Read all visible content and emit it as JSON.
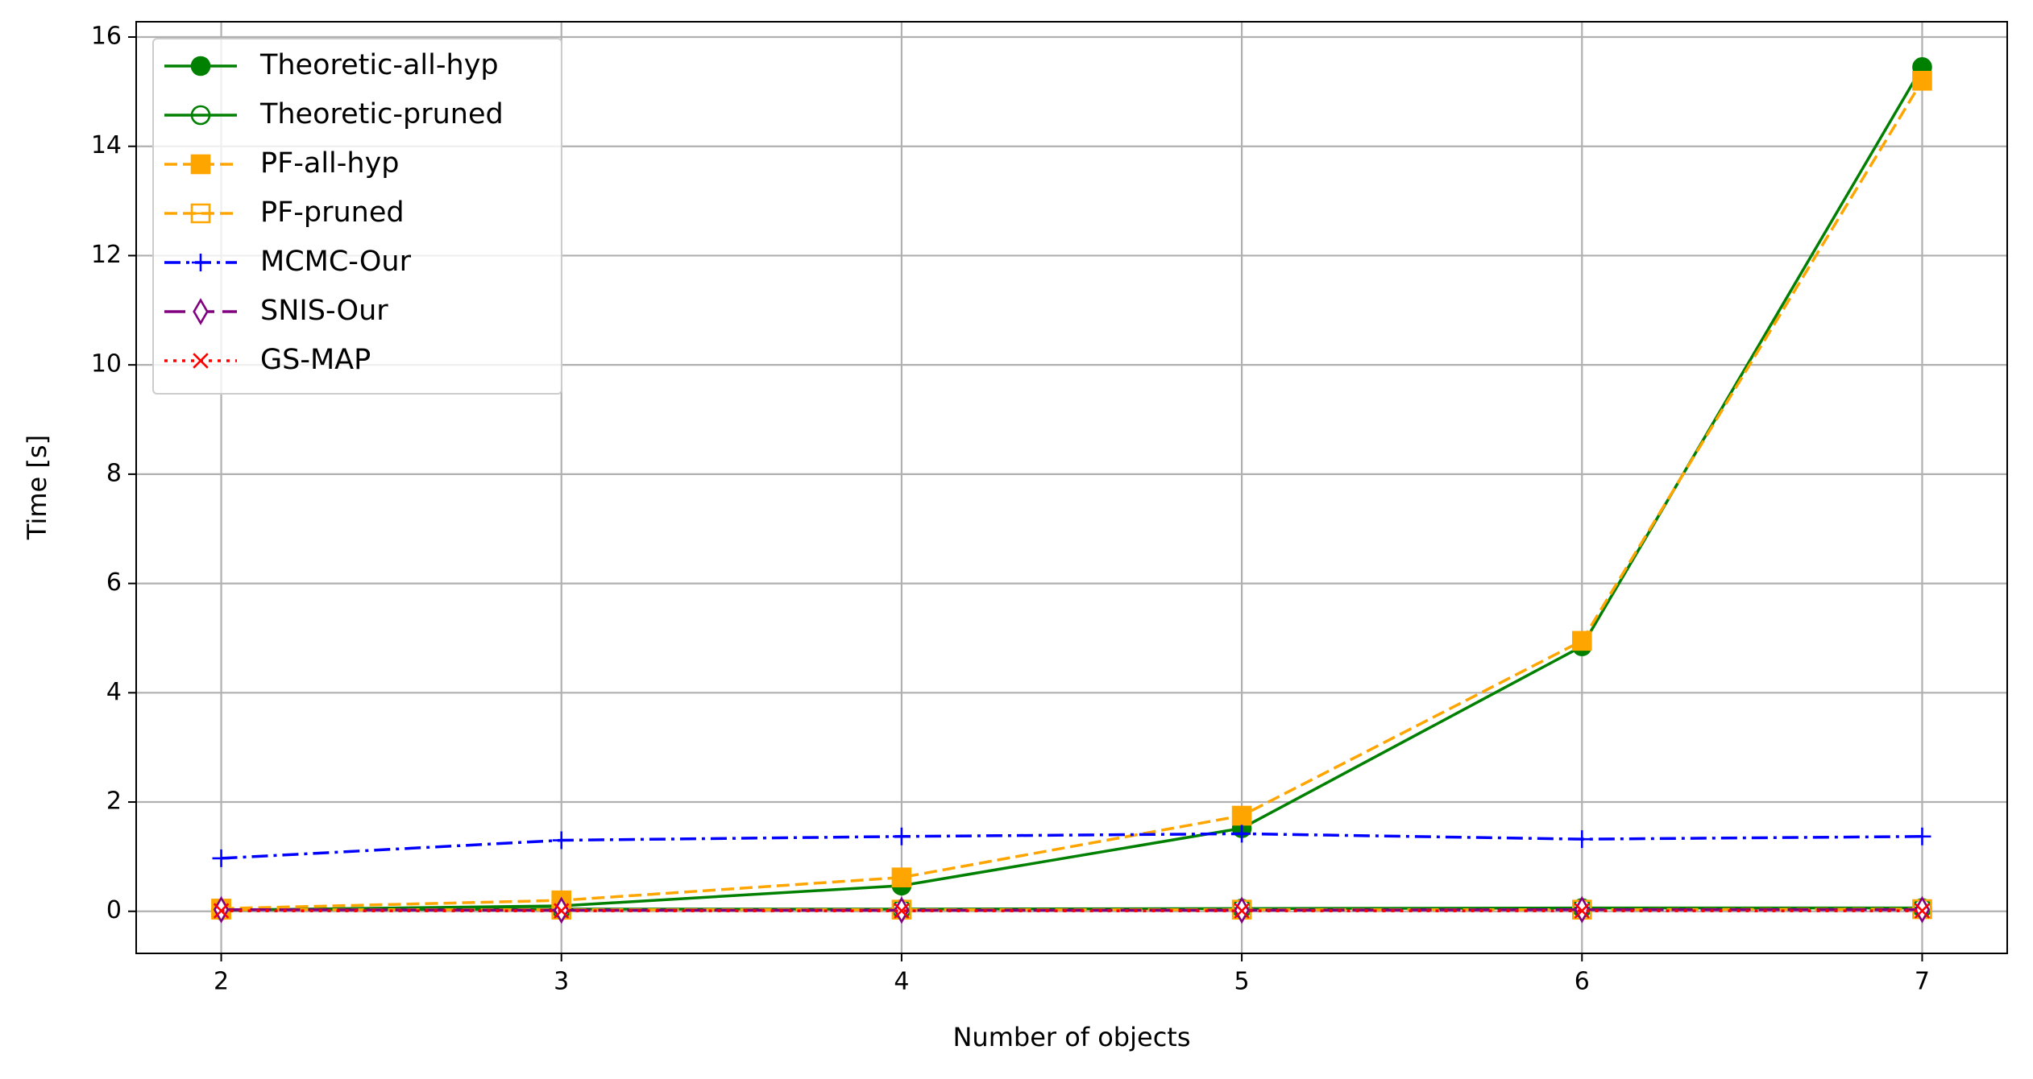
{
  "chart_data": {
    "type": "line",
    "x_label": "Number of objects",
    "y_label": "Time [s]",
    "x": [
      2,
      3,
      4,
      5,
      6,
      7
    ],
    "xlim": [
      1.75,
      7.25
    ],
    "xticks": [
      2,
      3,
      4,
      5,
      6,
      7
    ],
    "ylim": [
      -0.77,
      16.28
    ],
    "yticks": [
      0,
      2,
      4,
      6,
      8,
      10,
      12,
      14,
      16
    ],
    "grid": true,
    "legend": "upper left",
    "series": [
      {
        "name": "Theoretic-all-hyp",
        "color": "#008000",
        "linestyle": "solid",
        "marker": "circle-filled",
        "values": [
          0.02,
          0.1,
          0.47,
          1.52,
          4.85,
          15.45
        ]
      },
      {
        "name": "Theoretic-pruned",
        "color": "#008000",
        "linestyle": "solid",
        "marker": "circle-open",
        "values": [
          0.03,
          0.04,
          0.04,
          0.05,
          0.06,
          0.06
        ]
      },
      {
        "name": "PF-all-hyp",
        "color": "#ffa500",
        "linestyle": "dashed",
        "marker": "square-filled",
        "values": [
          0.05,
          0.2,
          0.62,
          1.75,
          4.95,
          15.2
        ]
      },
      {
        "name": "PF-pruned",
        "color": "#ffa500",
        "linestyle": "dashed",
        "marker": "square-open",
        "values": [
          0.03,
          0.03,
          0.03,
          0.03,
          0.03,
          0.04
        ]
      },
      {
        "name": "MCMC-Our",
        "color": "#0000ff",
        "linestyle": "dashdot",
        "marker": "plus",
        "values": [
          0.97,
          1.3,
          1.37,
          1.42,
          1.32,
          1.37
        ]
      },
      {
        "name": "SNIS-Our",
        "color": "#800080",
        "linestyle": "longdash",
        "marker": "thin-diamond-open",
        "values": [
          0.03,
          0.02,
          0.02,
          0.02,
          0.03,
          0.03
        ]
      },
      {
        "name": "GS-MAP",
        "color": "#ff0000",
        "linestyle": "dotted",
        "marker": "x",
        "values": [
          0.01,
          0.01,
          0.01,
          0.01,
          0.01,
          0.01
        ]
      }
    ]
  }
}
